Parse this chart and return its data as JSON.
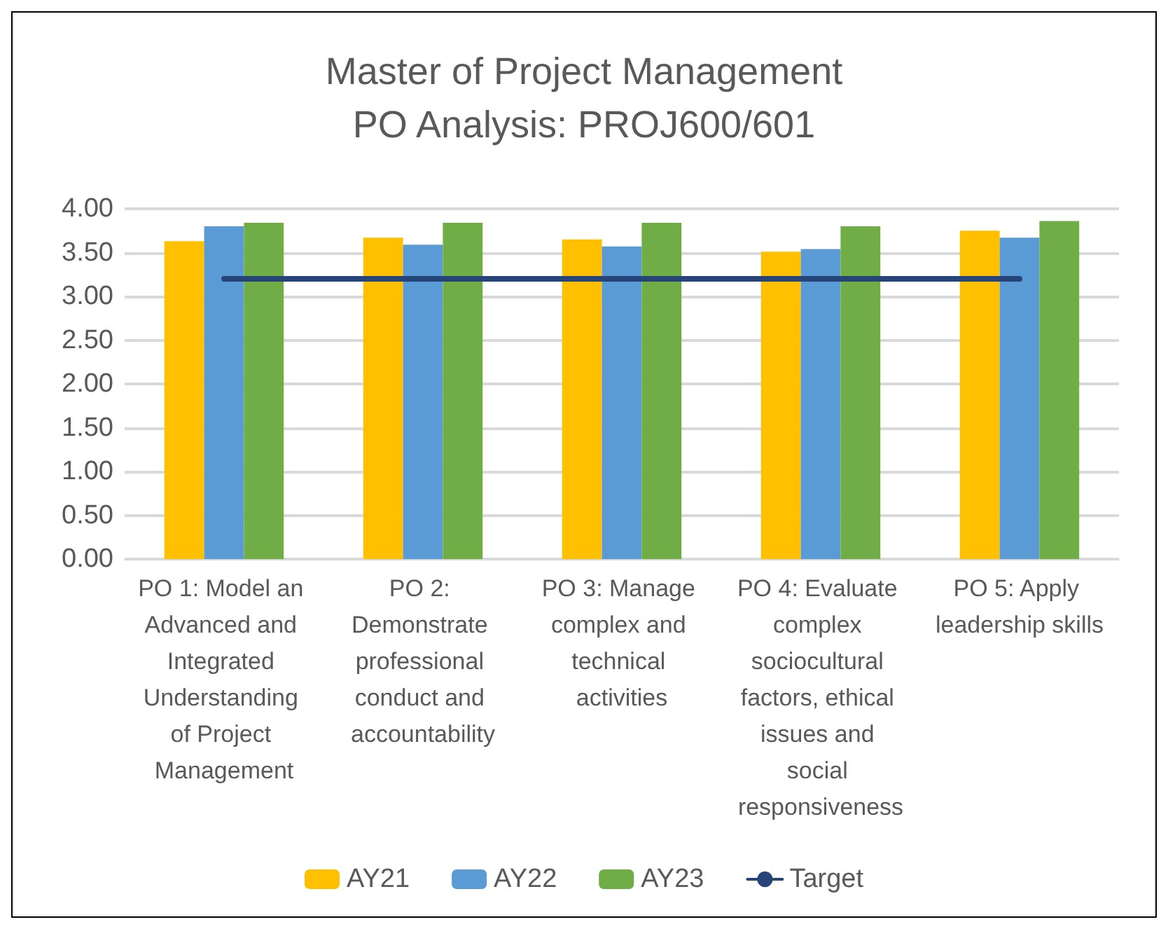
{
  "chart_data": {
    "type": "bar",
    "title": "Master of Project Management\nPO Analysis: PROJ600/601",
    "categories": [
      "PO 1: Model an Advanced and Integrated Understanding of Project Management",
      "PO 2: Demonstrate professional conduct and accountability",
      "PO 3: Manage complex and technical activities",
      "PO 4: Evaluate complex sociocultural factors, ethical issues and social responsiveness",
      "PO 5: Apply leadership skills"
    ],
    "series": [
      {
        "name": "AY21",
        "color": "#ffc000",
        "values": [
          3.63,
          3.67,
          3.65,
          3.51,
          3.75
        ]
      },
      {
        "name": "AY22",
        "color": "#5b9bd5",
        "values": [
          3.8,
          3.59,
          3.57,
          3.54,
          3.67
        ]
      },
      {
        "name": "AY23",
        "color": "#70ad47",
        "values": [
          3.84,
          3.84,
          3.84,
          3.8,
          3.86
        ]
      },
      {
        "name": "Target",
        "type": "line",
        "color": "#264478",
        "values": [
          3.2,
          3.2,
          3.2,
          3.2,
          3.2
        ],
        "marker": "none"
      }
    ],
    "ylim": [
      0,
      4
    ],
    "yticks": [
      {
        "value": 0,
        "label": "0.00"
      },
      {
        "value": 0.5,
        "label": "0.50"
      },
      {
        "value": 1,
        "label": "1.00"
      },
      {
        "value": 1.5,
        "label": "1.50"
      },
      {
        "value": 2,
        "label": "2.00"
      },
      {
        "value": 2.5,
        "label": "2.50"
      },
      {
        "value": 3,
        "label": "3.00"
      },
      {
        "value": 3.5,
        "label": "3.50"
      },
      {
        "value": 4,
        "label": "4.00"
      }
    ],
    "grid": "y",
    "legend": "bottom"
  }
}
